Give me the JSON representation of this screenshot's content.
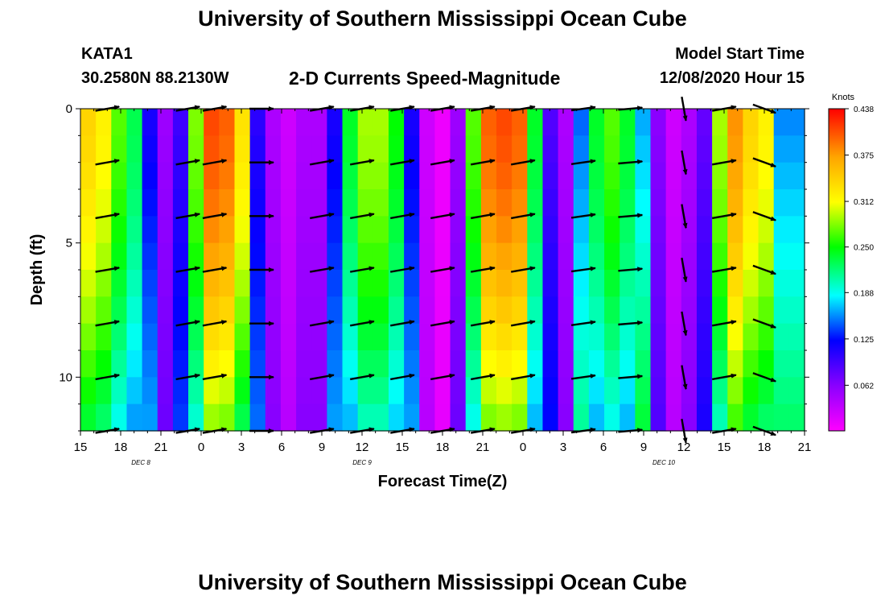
{
  "header": {
    "title": "University of Southern Mississippi Ocean Cube",
    "station_id": "KATA1",
    "coords": "30.2580N 88.2130W",
    "chart_title": "2-D Currents Speed-Magnitude",
    "model_label": "Model Start Time",
    "model_time": "12/08/2020 Hour 15"
  },
  "footer": {
    "title": "University of Southern Mississippi Ocean Cube"
  },
  "chart_data": {
    "type": "heatmap",
    "title": "2-D Currents Speed-Magnitude",
    "xlabel": "Forecast Time(Z)",
    "ylabel": "Depth (ft)",
    "x_range_hours": [
      0,
      54
    ],
    "x_tick_labels": [
      "15",
      "18",
      "21",
      "0",
      "3",
      "6",
      "9",
      "12",
      "15",
      "18",
      "21",
      "0",
      "3",
      "6",
      "9",
      "12",
      "15",
      "18",
      "21"
    ],
    "date_labels": [
      {
        "label": "DEC 8",
        "hour": 4.5
      },
      {
        "label": "DEC 9",
        "hour": 21
      },
      {
        "label": "DEC 10",
        "hour": 43.5
      }
    ],
    "y_range_ft": [
      0,
      12
    ],
    "y_ticks": [
      0,
      5,
      10
    ],
    "colorbar": {
      "unit": "Knots",
      "min": 0,
      "max": 0.438,
      "ticks": [
        "0.438",
        "0.375",
        "0.312",
        "0.250",
        "0.188",
        "0.125",
        "0.062"
      ]
    },
    "speed_profile_knots": [
      0.34,
      0.32,
      0.27,
      0.23,
      0.13,
      0.06,
      0.11,
      0.28,
      0.41,
      0.4,
      0.33,
      0.12,
      0.05,
      0.03,
      0.05,
      0.05,
      0.13,
      0.24,
      0.29,
      0.29,
      0.25,
      0.13,
      0.03,
      0.01,
      0.06,
      0.27,
      0.4,
      0.41,
      0.4,
      0.24,
      0.1,
      0.05,
      0.17,
      0.24,
      0.27,
      0.24,
      0.19,
      0.07,
      0.03,
      0.05,
      0.09,
      0.29,
      0.38,
      0.34,
      0.32,
      0.18,
      0.18
    ],
    "vector_rows_ft": [
      0,
      2,
      4,
      6,
      8,
      10,
      12
    ],
    "vector_columns": [
      {
        "hour": 2,
        "dir": 10
      },
      {
        "hour": 8,
        "dir": 10
      },
      {
        "hour": 10,
        "dir": 10
      },
      {
        "hour": 13.5,
        "dir": 0
      },
      {
        "hour": 18,
        "dir": 10
      },
      {
        "hour": 21,
        "dir": 10
      },
      {
        "hour": 24,
        "dir": 10
      },
      {
        "hour": 27,
        "dir": 10
      },
      {
        "hour": 30,
        "dir": 10
      },
      {
        "hour": 33,
        "dir": 10
      },
      {
        "hour": 37.5,
        "dir": 8
      },
      {
        "hour": 41,
        "dir": 5
      },
      {
        "hour": 45,
        "dir": -80
      },
      {
        "hour": 48,
        "dir": 10
      },
      {
        "hour": 51,
        "dir": -20
      }
    ]
  }
}
